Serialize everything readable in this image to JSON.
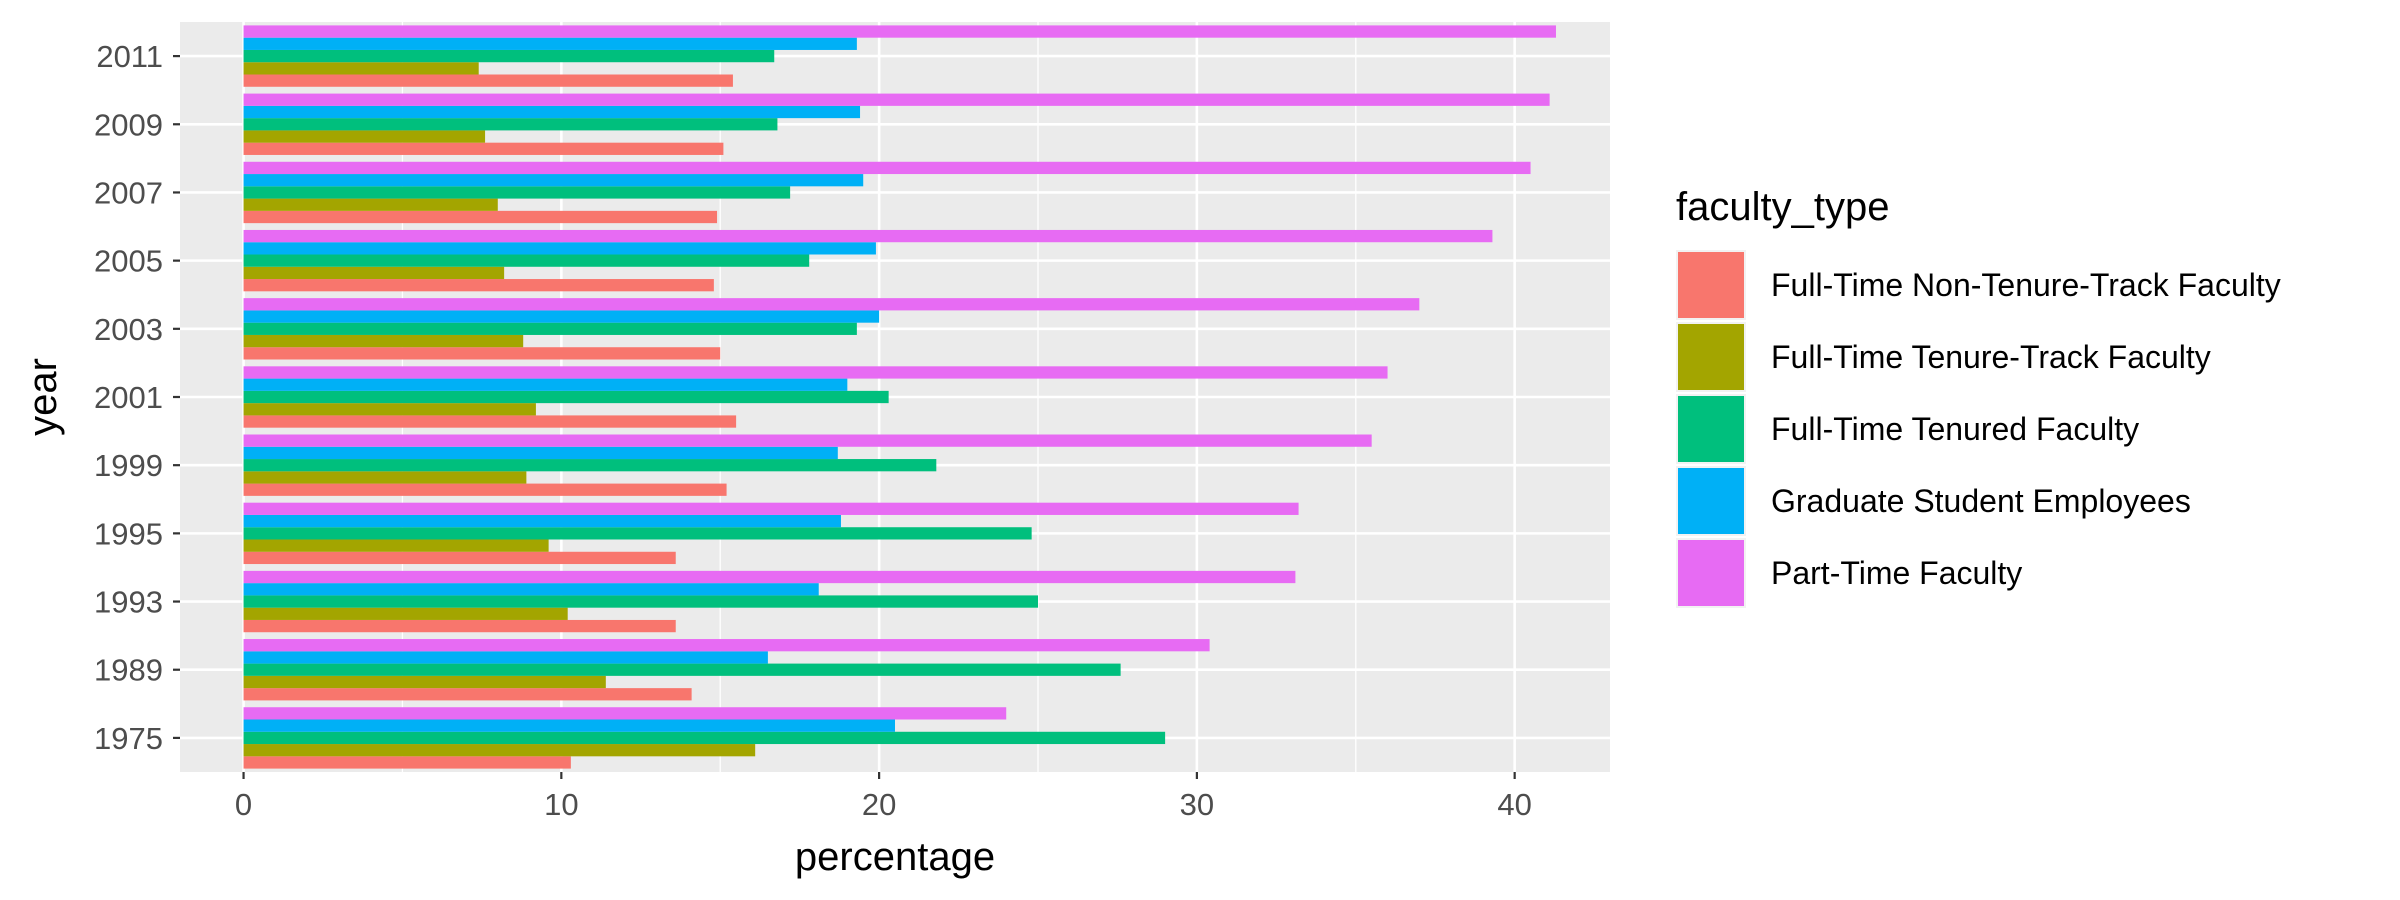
{
  "chart_data": {
    "type": "bar",
    "orientation": "horizontal",
    "xlabel": "percentage",
    "ylabel": "year",
    "xlim": [
      -2,
      43
    ],
    "xticks": [
      0,
      10,
      20,
      30,
      40
    ],
    "grid": true,
    "legend": {
      "title": "faculty_type",
      "placement": "right"
    },
    "categories": [
      "1975",
      "1989",
      "1993",
      "1995",
      "1999",
      "2001",
      "2003",
      "2005",
      "2007",
      "2009",
      "2011"
    ],
    "series": [
      {
        "name": "Full-Time Non-Tenure-Track Faculty",
        "color": "#F8766D",
        "values": [
          10.3,
          14.1,
          13.6,
          13.6,
          15.2,
          15.5,
          15.0,
          14.8,
          14.9,
          15.1,
          15.4
        ]
      },
      {
        "name": "Full-Time Tenure-Track Faculty",
        "color": "#A3A500",
        "values": [
          16.1,
          11.4,
          10.2,
          9.6,
          8.9,
          9.2,
          8.8,
          8.2,
          8.0,
          7.6,
          7.4
        ]
      },
      {
        "name": "Full-Time Tenured Faculty",
        "color": "#00BF7D",
        "values": [
          29.0,
          27.6,
          25.0,
          24.8,
          21.8,
          20.3,
          19.3,
          17.8,
          17.2,
          16.8,
          16.7
        ]
      },
      {
        "name": "Graduate Student Employees",
        "color": "#00B0F6",
        "values": [
          20.5,
          16.5,
          18.1,
          18.8,
          18.7,
          19.0,
          20.0,
          19.9,
          19.5,
          19.4,
          19.3
        ]
      },
      {
        "name": "Part-Time Faculty",
        "color": "#E76BF3",
        "values": [
          24.0,
          30.4,
          33.1,
          33.2,
          35.5,
          36.0,
          37.0,
          39.3,
          40.5,
          41.1,
          41.3
        ]
      }
    ]
  }
}
